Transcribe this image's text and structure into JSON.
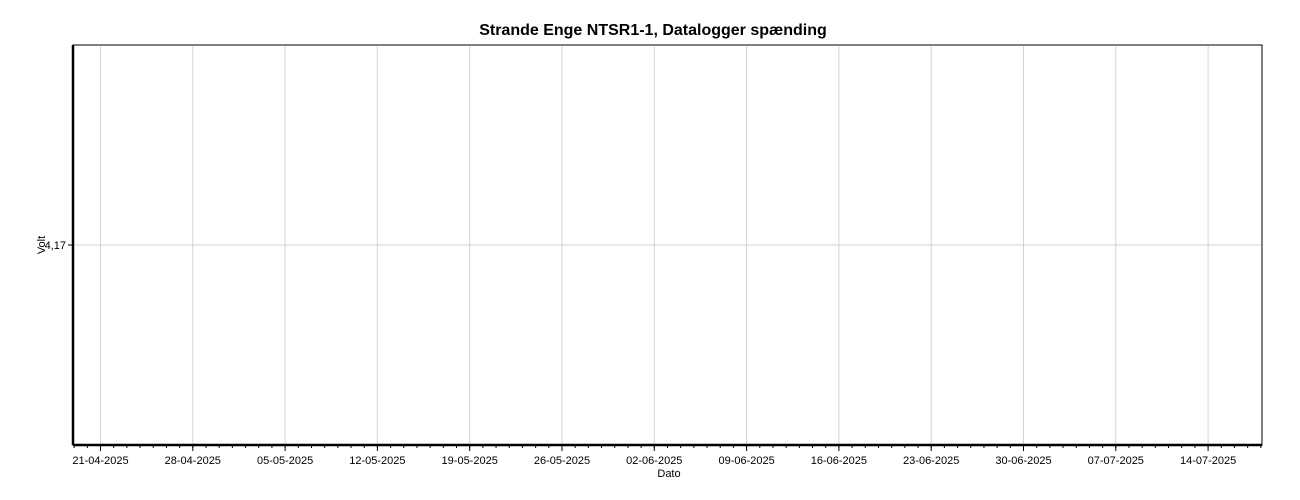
{
  "chart_data": {
    "type": "line",
    "title": "Strande Enge NTSR1-1, Datalogger spænding",
    "xlabel": "Dato",
    "ylabel": "Volt",
    "x_tick_labels": [
      "21-04-2025",
      "28-04-2025",
      "05-05-2025",
      "12-05-2025",
      "19-05-2025",
      "26-05-2025",
      "02-06-2025",
      "09-06-2025",
      "16-06-2025",
      "23-06-2025",
      "30-06-2025",
      "07-07-2025",
      "14-07-2025"
    ],
    "y_tick_labels": [
      "4,17"
    ],
    "grid": true,
    "series": []
  }
}
